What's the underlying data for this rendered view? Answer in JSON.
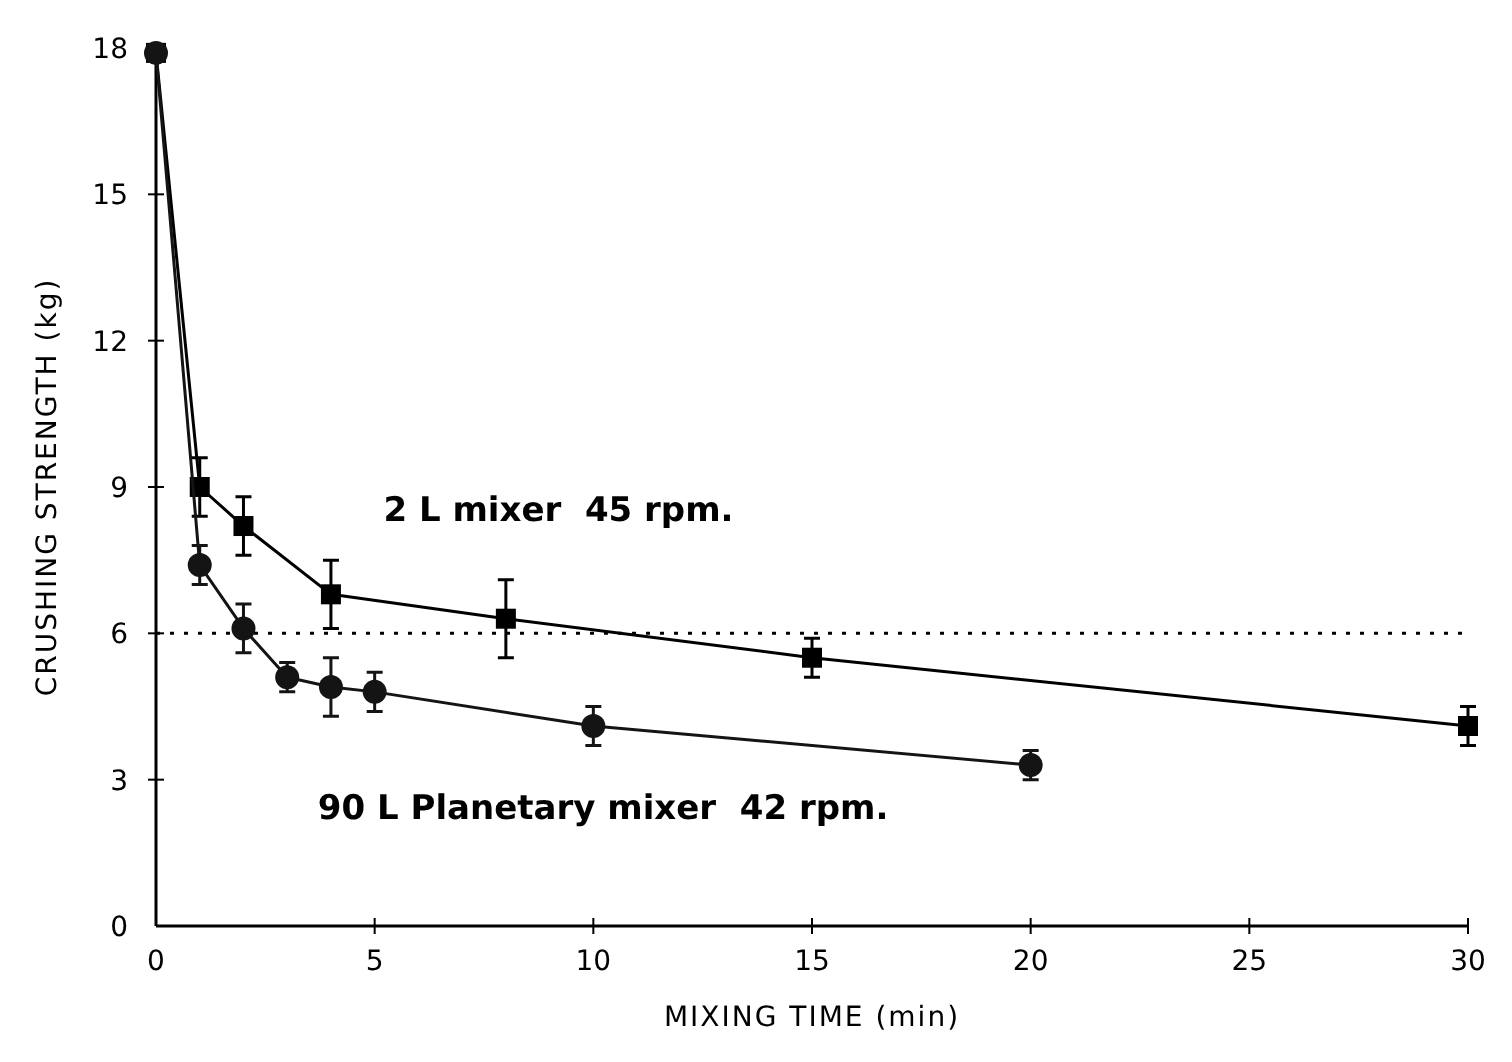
{
  "chart_data": {
    "type": "line",
    "xlabel": "MIXING TIME (min)",
    "ylabel": "CRUSHING STRENGTH (kg)",
    "xlim": [
      0,
      30
    ],
    "xticks": [
      0,
      5,
      10,
      15,
      20,
      25,
      30
    ],
    "ylim": [
      0,
      18
    ],
    "yticks": [
      0,
      3,
      6,
      9,
      12,
      15,
      18
    ],
    "grid": false,
    "line_style": "solid",
    "series": [
      {
        "name": "2 L mixer  45 rpm.",
        "color": "#000000",
        "marker": "square",
        "x": [
          0,
          1,
          2,
          4,
          8,
          15,
          30
        ],
        "values": [
          17.9,
          9.0,
          8.2,
          6.8,
          6.3,
          5.5,
          4.1
        ],
        "errors": [
          null,
          0.6,
          0.6,
          0.7,
          0.8,
          0.4,
          0.4
        ]
      },
      {
        "name": "90 L Planetary mixer  42 rpm.",
        "color": "#141414",
        "marker": "circle",
        "x": [
          0,
          1,
          2,
          3,
          4,
          5,
          10,
          20
        ],
        "values": [
          17.9,
          7.4,
          6.1,
          5.1,
          4.9,
          4.8,
          4.1,
          3.3
        ],
        "errors": [
          null,
          0.4,
          0.5,
          0.3,
          0.6,
          0.4,
          0.4,
          0.3
        ]
      }
    ],
    "ref_lines": [
      {
        "axis": "y",
        "value": 6,
        "line_style": "dotted",
        "color": "#000000"
      }
    ]
  }
}
